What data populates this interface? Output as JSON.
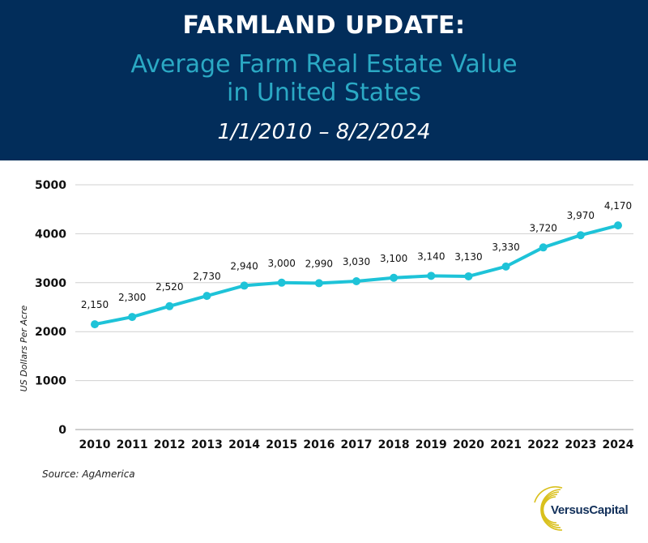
{
  "header": {
    "title": "FARMLAND UPDATE:",
    "subtitle_line1": "Average Farm Real Estate Value",
    "subtitle_line2": "in United States",
    "date_range": "1/1/2010 – 8/2/2024"
  },
  "colors": {
    "header_bg": "#022d5a",
    "subtitle": "#2ba9c4",
    "line": "#1ec3d8",
    "grid": "#d0d0d0",
    "logo_gold": "#d9c01c",
    "logo_text": "#12305a"
  },
  "source": "Source: AgAmerica",
  "logo": {
    "name": "VersusCapital"
  },
  "chart_data": {
    "type": "line",
    "title": "Average Farm Real Estate Value in United States",
    "xlabel": "",
    "ylabel": "US Dollars Per Acre",
    "x": [
      "2010",
      "2011",
      "2012",
      "2013",
      "2014",
      "2015",
      "2016",
      "2017",
      "2018",
      "2019",
      "2020",
      "2021",
      "2022",
      "2023",
      "2024"
    ],
    "series": [
      {
        "name": "Average Farm Real Estate Value",
        "values": [
          2150,
          2300,
          2520,
          2730,
          2940,
          3000,
          2990,
          3030,
          3100,
          3140,
          3130,
          3330,
          3720,
          3970,
          4170
        ]
      }
    ],
    "data_labels": [
      "2,150",
      "2,300",
      "2,520",
      "2,730",
      "2,940",
      "3,000",
      "2,990",
      "3,030",
      "3,100",
      "3,140",
      "3,130",
      "3,330",
      "3,720",
      "3,970",
      "4,170"
    ],
    "yticks": [
      0,
      1000,
      2000,
      3000,
      4000,
      5000
    ],
    "ylim": [
      0,
      5000
    ],
    "grid": true,
    "legend": "none"
  }
}
